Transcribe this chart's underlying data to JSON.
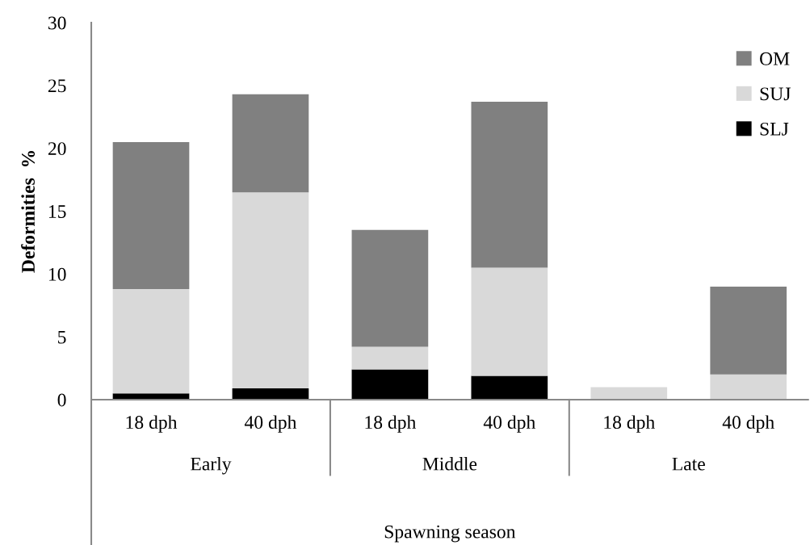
{
  "chart_data": {
    "type": "bar",
    "stacked": true,
    "categories": [
      "18 dph",
      "40 dph",
      "18 dph",
      "40 dph",
      "18 dph",
      "40 dph"
    ],
    "series": [
      {
        "name": "SLJ",
        "color": "#000000",
        "values": [
          0.5,
          0.9,
          2.4,
          1.9,
          0,
          0
        ]
      },
      {
        "name": "SUJ",
        "color": "#d9d9d9",
        "values": [
          8.3,
          15.6,
          1.8,
          8.6,
          1.0,
          2.0
        ]
      },
      {
        "name": "OM",
        "color": "#808080",
        "values": [
          11.7,
          7.8,
          9.3,
          13.2,
          0,
          7.0
        ]
      }
    ],
    "annotations": [
      "Early",
      "Middle",
      "Late"
    ],
    "xlabel": "Spawning season",
    "ylabel": "Deformities  %",
    "ylim": [
      0,
      30
    ],
    "yticks": [
      0,
      5,
      10,
      15,
      20,
      25,
      30
    ],
    "legend": "top right",
    "grid": false
  }
}
